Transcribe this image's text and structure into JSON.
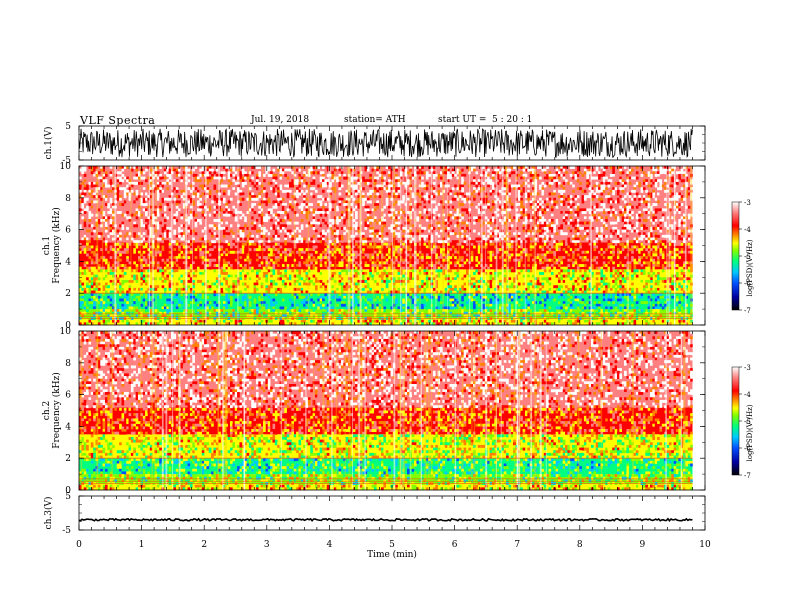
{
  "header": {
    "title": "VLF Spectra",
    "date": "Jul. 19, 2018",
    "station": "station= ATH",
    "start_label": "start UT =",
    "start_value": "5 : 20 : 1"
  },
  "chart_data": [
    {
      "type": "line",
      "name": "ch1-waveform",
      "ylabel": "ch.1(V)",
      "ylim": [
        -5,
        5
      ],
      "yticks": [
        "5",
        "-5"
      ],
      "xlim": [
        0,
        10
      ],
      "description_values": "dense oscillation between about -4 and +4 V over 0 to 9.8 min"
    },
    {
      "type": "heatmap",
      "name": "ch1-spectrogram",
      "ylabel": "ch.1 Frequency (kHz)",
      "ylim": [
        0,
        10
      ],
      "yticks": [
        "0",
        "2",
        "4",
        "6",
        "8",
        "10"
      ],
      "xlim": [
        0,
        10
      ],
      "data_end_min": 9.8,
      "bands": [
        {
          "from": 0,
          "to": 0.4,
          "level": -4.5
        },
        {
          "from": 0.4,
          "to": 1.0,
          "level": -5.0
        },
        {
          "from": 1.0,
          "to": 2.0,
          "level": -5.5
        },
        {
          "from": 2.0,
          "to": 3.5,
          "level": -4.6
        },
        {
          "from": 3.5,
          "to": 5.2,
          "level": -4.0
        },
        {
          "from": 5.2,
          "to": 10,
          "level": -3.4
        }
      ],
      "colorbar": {
        "label": "log(PSD)(V²/Hz)",
        "range": [
          -7,
          -3
        ],
        "ticks": [
          "-3",
          "-4",
          "-5",
          "-6",
          "-7"
        ]
      }
    },
    {
      "type": "heatmap",
      "name": "ch2-spectrogram",
      "ylabel": "ch.2 Frequency (kHz)",
      "ylim": [
        0,
        10
      ],
      "yticks": [
        "0",
        "2",
        "4",
        "6",
        "8",
        "10"
      ],
      "xlim": [
        0,
        10
      ],
      "data_end_min": 9.8,
      "bands": [
        {
          "from": 0,
          "to": 0.4,
          "level": -4.5
        },
        {
          "from": 0.4,
          "to": 1.0,
          "level": -4.9
        },
        {
          "from": 1.0,
          "to": 2.0,
          "level": -5.3
        },
        {
          "from": 2.0,
          "to": 3.5,
          "level": -4.7
        },
        {
          "from": 3.5,
          "to": 5.2,
          "level": -4.0
        },
        {
          "from": 5.2,
          "to": 10,
          "level": -3.4
        }
      ],
      "colorbar": {
        "label": "log(PSD)(V²/Hz)",
        "range": [
          -7,
          -3
        ],
        "ticks": [
          "-3",
          "-4",
          "-5",
          "-6",
          "-7"
        ]
      }
    },
    {
      "type": "line",
      "name": "ch3-waveform",
      "ylabel": "ch.3(V)",
      "ylim": [
        -5,
        5
      ],
      "yticks": [
        "5",
        "-5"
      ],
      "xlim": [
        0,
        10
      ],
      "description_values": "near-constant trace at about -2 V"
    }
  ],
  "xaxis": {
    "label": "Time (min)",
    "ticks": [
      "0",
      "1",
      "2",
      "3",
      "4",
      "5",
      "6",
      "7",
      "8",
      "9",
      "10"
    ]
  },
  "colors": {
    "colormap": [
      "#000000",
      "#0000a0",
      "#0050ff",
      "#00c8ff",
      "#00ff80",
      "#80ff00",
      "#ffff00",
      "#ff8000",
      "#ff0000",
      "#ff8080",
      "#ffffff"
    ]
  }
}
